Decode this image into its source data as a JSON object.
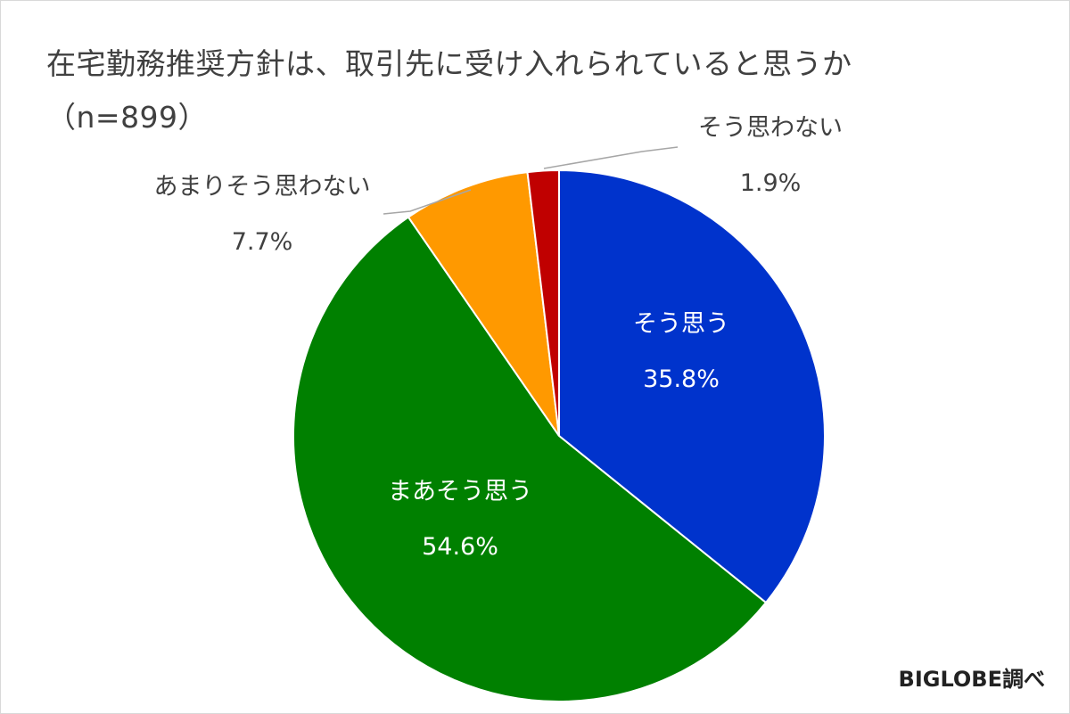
{
  "chart_data": {
    "type": "pie",
    "title": "在宅勤務推奨方針は、取引先に受け入れられていると思うか\n（n=899）",
    "start": "12 o'clock, clockwise",
    "slices": [
      {
        "label": "そう思う",
        "value": 35.8,
        "value_label": "35.8%",
        "color": "#0033cc",
        "label_color": "#ffffff"
      },
      {
        "label": "まあそう思う",
        "value": 54.6,
        "value_label": "54.6%",
        "color": "#008000",
        "label_color": "#ffffff"
      },
      {
        "label": "あまりそう思わない",
        "value": 7.7,
        "value_label": "7.7%",
        "color": "#ff9900",
        "label_color": "#404040"
      },
      {
        "label": "そう思わない",
        "value": 1.9,
        "value_label": "1.9%",
        "color": "#c00000",
        "label_color": "#404040"
      }
    ]
  },
  "credit": "BIGLOBE調べ"
}
